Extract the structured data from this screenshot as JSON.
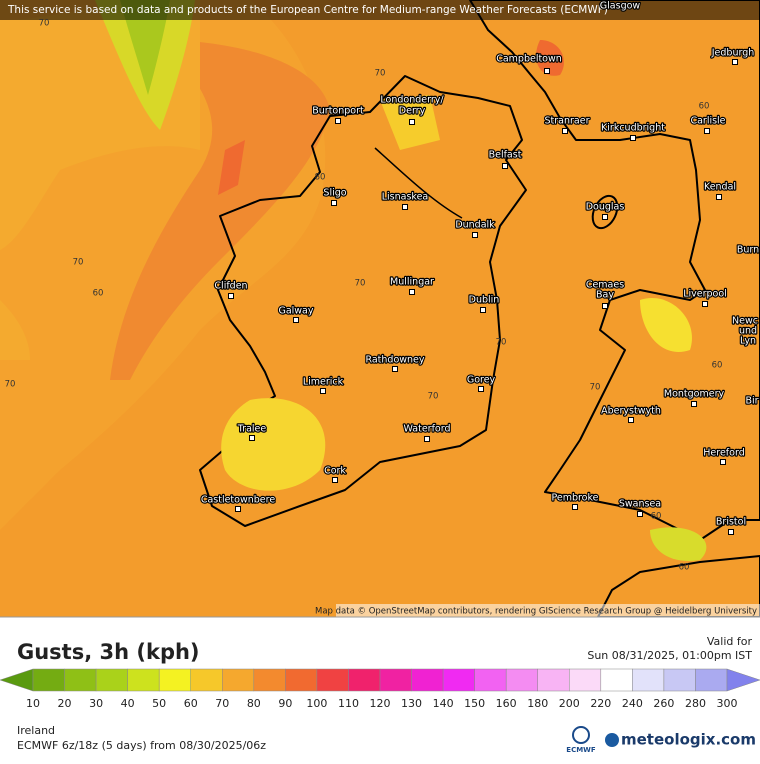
{
  "header": {
    "attribution": "This service is based on data and products of the European Centre for Medium-range Weather Forecasts (ECMWF)"
  },
  "map": {
    "cities": [
      "Glasgow",
      "Campbeltown",
      "Jedburgh",
      "Burtonport",
      "Londonderry/",
      "Derry",
      "Stranraer",
      "Kirkcudbright",
      "Carlisle",
      "Belfast",
      "Sligo",
      "Lisnaskea",
      "Dundalk",
      "Douglas",
      "Kendal",
      "Burn",
      "Clifden",
      "Mullingar",
      "Dublin",
      "Galway",
      "Cemaes",
      "Bay",
      "Liverpool",
      "Newc",
      "und",
      "Lyn",
      "Rathdowney",
      "Limerick",
      "Gorey",
      "Montgomery",
      "Bir",
      "Aberystwyth",
      "Tralee",
      "Waterford",
      "Hereford",
      "Cork",
      "Castletownbere",
      "Pembroke",
      "Swansea",
      "Bristol"
    ],
    "contour_labels": [
      70,
      70,
      60,
      80,
      70,
      60,
      70,
      70,
      70,
      70,
      70,
      60,
      60,
      60
    ],
    "credit": "Map data © OpenStreetMap contributors, rendering GIScience Research Group @ Heidelberg University"
  },
  "legend": {
    "title": "Gusts, 3h (kph)",
    "valid_label": "Valid for",
    "valid_time": "Sun 08/31/2025, 01:00pm IST",
    "scale_labels": [
      10,
      20,
      30,
      40,
      50,
      60,
      70,
      80,
      90,
      100,
      110,
      120,
      130,
      140,
      150,
      160,
      180,
      200,
      220,
      240,
      260,
      280,
      300
    ],
    "scale_colors": [
      "#5a9a10",
      "#74ac12",
      "#8fc016",
      "#aad21a",
      "#cde21e",
      "#f4f222",
      "#f6c82a",
      "#f5a82e",
      "#f38a2e",
      "#f16a30",
      "#f04242",
      "#f0226c",
      "#f022a2",
      "#f022d2",
      "#f02af2",
      "#f262f2",
      "#f48cf2",
      "#f8b4f4",
      "#fbdaf8",
      "#ffffff",
      "#e2e2fa",
      "#c8c8f4",
      "#aaaaf0",
      "#8282ec"
    ],
    "region": "Ireland",
    "model_run": "ECMWF 6z/18z (5 days) from 08/30/2025/06z",
    "ecmwf_logo": "ECMWF",
    "brand": "meteologix.com"
  }
}
